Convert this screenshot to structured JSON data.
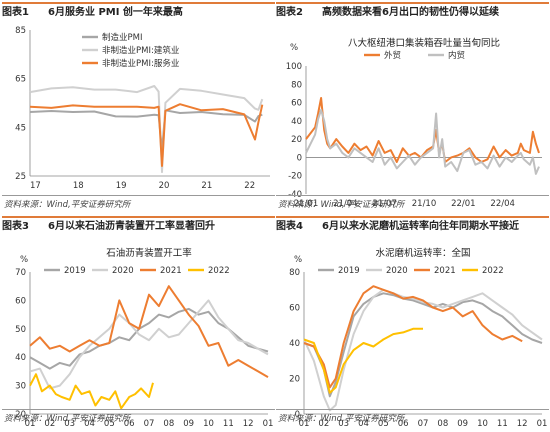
{
  "colors": {
    "orange": "#ed7d31",
    "gray": "#c0c0c0",
    "dark_gray": "#a6a6a6",
    "yellow": "#ffc000",
    "header_line": "#e07b39"
  },
  "source_note": "资料来源：Wind,平安证券研究所",
  "chart_data": [
    {
      "type": "line",
      "panel_label": "图表1",
      "title": "6月服务业 PMI 创一年来最高",
      "xlabel": "",
      "ylabel": "",
      "ylim": [
        25,
        85
      ],
      "yticks": [
        "85",
        "65",
        "45",
        "25"
      ],
      "xticks": [
        "17",
        "18",
        "19",
        "20",
        "21",
        "22"
      ],
      "legend": "top-left",
      "series": [
        {
          "name": "制造业PMI",
          "color": "#a6a6a6",
          "x": [
            2017.0,
            2017.5,
            2018.0,
            2018.5,
            2019.0,
            2019.5,
            2019.9,
            2020.0,
            2020.08,
            2020.16,
            2020.5,
            2021.0,
            2021.5,
            2022.0,
            2022.25,
            2022.33,
            2022.42
          ],
          "values": [
            51.3,
            51.7,
            51.3,
            51.5,
            49.5,
            49.4,
            50.2,
            50.0,
            35.7,
            52.0,
            50.9,
            51.3,
            50.4,
            50.1,
            47.4,
            49.6,
            50.2
          ]
        },
        {
          "name": "非制造业PMI:建筑业",
          "color": "#d0d0d0",
          "x": [
            2017.0,
            2017.5,
            2018.0,
            2018.5,
            2019.0,
            2019.5,
            2019.9,
            2020.0,
            2020.08,
            2020.16,
            2020.5,
            2021.0,
            2021.5,
            2022.0,
            2022.25,
            2022.33,
            2022.42
          ],
          "values": [
            59.5,
            61.0,
            61.5,
            60.5,
            60.5,
            59.5,
            62.0,
            59.7,
            26.6,
            55.1,
            60.8,
            60.0,
            58.5,
            57.0,
            52.7,
            52.2,
            56.6
          ]
        },
        {
          "name": "非制造业PMI:服务业",
          "color": "#ed7d31",
          "x": [
            2017.0,
            2017.5,
            2018.0,
            2018.5,
            2019.0,
            2019.5,
            2019.9,
            2020.0,
            2020.08,
            2020.16,
            2020.5,
            2021.0,
            2021.5,
            2022.0,
            2022.25,
            2022.33,
            2022.42
          ],
          "values": [
            53.5,
            53.0,
            54.0,
            53.5,
            53.5,
            53.5,
            53.0,
            53.5,
            29.1,
            51.8,
            54.5,
            52.0,
            52.5,
            50.3,
            40.0,
            47.1,
            54.3
          ]
        }
      ]
    },
    {
      "type": "line",
      "panel_label": "图表2",
      "title": "高频数据来看6月出口的韧性仍得以延续",
      "subtitle": "八大枢纽港口集装箱吞吐量当旬同比",
      "xlabel": "",
      "ylabel": "%",
      "ylim": [
        -40,
        100
      ],
      "yticks": [
        "100",
        "80",
        "60",
        "40",
        "20",
        "0",
        "-20",
        "-40"
      ],
      "xticks": [
        "21/01",
        "21/04",
        "21/07",
        "21/10",
        "22/01",
        "22/04"
      ],
      "legend": "top-center",
      "series": [
        {
          "name": "外贸",
          "color": "#ed7d31",
          "x": [
            0,
            3,
            4,
            5,
            6,
            7,
            8,
            10,
            12,
            14,
            16,
            18,
            20,
            22,
            24,
            26,
            28,
            30,
            32,
            34,
            36,
            38,
            40,
            42,
            43,
            44,
            45,
            46,
            48,
            50,
            52,
            54,
            56,
            58,
            60,
            62,
            64,
            66,
            68,
            70,
            71,
            72,
            74,
            75,
            76,
            77
          ],
          "values": [
            20,
            33,
            48,
            65,
            30,
            15,
            10,
            20,
            12,
            5,
            15,
            8,
            12,
            2,
            18,
            5,
            8,
            -5,
            10,
            2,
            5,
            0,
            8,
            12,
            30,
            5,
            15,
            -5,
            0,
            2,
            5,
            10,
            0,
            -5,
            -2,
            12,
            0,
            8,
            2,
            5,
            15,
            8,
            5,
            28,
            15,
            5
          ]
        },
        {
          "name": "内贸",
          "color": "#c0c0c0",
          "x": [
            0,
            3,
            4,
            5,
            6,
            7,
            8,
            10,
            12,
            14,
            16,
            18,
            20,
            22,
            24,
            26,
            28,
            30,
            32,
            34,
            36,
            38,
            40,
            42,
            43,
            44,
            45,
            46,
            48,
            50,
            52,
            54,
            56,
            58,
            60,
            62,
            64,
            66,
            68,
            70,
            71,
            72,
            74,
            75,
            76,
            77
          ],
          "values": [
            5,
            25,
            42,
            52,
            40,
            20,
            10,
            15,
            5,
            0,
            10,
            5,
            0,
            -5,
            10,
            -8,
            0,
            -12,
            -5,
            2,
            -8,
            0,
            5,
            10,
            48,
            0,
            20,
            -10,
            -5,
            -15,
            5,
            8,
            -8,
            -5,
            -12,
            2,
            -10,
            0,
            -5,
            2,
            5,
            -2,
            -8,
            0,
            -18,
            -10
          ]
        }
      ]
    },
    {
      "type": "line",
      "panel_label": "图表3",
      "title": "6月以来石油沥青装置开工率显著回升",
      "subtitle": "石油沥青装置开工率",
      "xlabel": "",
      "ylabel": "%",
      "ylim": [
        20,
        70
      ],
      "yticks": [
        "70",
        "60",
        "50",
        "40",
        "30",
        "20"
      ],
      "xticks": [
        "01",
        "02",
        "03",
        "04",
        "05",
        "06",
        "07",
        "08",
        "09",
        "10",
        "11",
        "12",
        "01"
      ],
      "legend": "top-center",
      "series": [
        {
          "name": "2019",
          "color": "#a6a6a6",
          "x": [
            1,
            1.5,
            2,
            2.5,
            3,
            3.5,
            4,
            4.5,
            5,
            5.5,
            6,
            6.5,
            7,
            7.5,
            8,
            8.5,
            9,
            9.5,
            10,
            10.5,
            11,
            11.5,
            12,
            12.5,
            13
          ],
          "values": [
            40,
            38,
            36,
            38,
            37,
            41,
            42,
            44,
            45,
            47,
            46,
            50,
            52,
            55,
            54,
            56,
            57,
            55,
            56,
            52,
            50,
            47,
            44,
            43,
            42
          ]
        },
        {
          "name": "2020",
          "color": "#d0d0d0",
          "x": [
            1,
            1.5,
            2,
            2.5,
            3,
            3.5,
            4,
            4.5,
            5,
            5.5,
            6,
            6.5,
            7,
            7.5,
            8,
            8.5,
            9,
            9.5,
            10,
            10.5,
            11,
            11.5,
            12,
            12.5,
            13
          ],
          "values": [
            35,
            36,
            29,
            30,
            34,
            40,
            44,
            47,
            50,
            55,
            52,
            48,
            46,
            50,
            47,
            48,
            52,
            56,
            60,
            54,
            50,
            46,
            45,
            43,
            41
          ]
        },
        {
          "name": "2021",
          "color": "#ed7d31",
          "x": [
            1,
            1.5,
            2,
            2.5,
            3,
            3.5,
            4,
            4.5,
            5,
            5.5,
            6,
            6.5,
            7,
            7.5,
            8,
            8.5,
            9,
            9.5,
            10,
            10.5,
            11,
            11.5,
            12,
            12.5,
            13
          ],
          "values": [
            44,
            47,
            43,
            44,
            42,
            44,
            46,
            44,
            45,
            60,
            52,
            50,
            62,
            58,
            65,
            60,
            55,
            51,
            44,
            45,
            37,
            39,
            37,
            35,
            33
          ]
        },
        {
          "name": "2022",
          "color": "#ffc000",
          "x": [
            1,
            1.3,
            1.6,
            2,
            2.3,
            2.6,
            3,
            3.3,
            3.6,
            4,
            4.3,
            4.6,
            5,
            5.3,
            5.6,
            6,
            6.3,
            6.6,
            7,
            7.2
          ],
          "values": [
            30,
            34,
            28,
            30,
            27,
            26,
            25,
            30,
            27,
            28,
            23,
            26,
            25,
            28,
            22,
            26,
            27,
            29,
            26,
            31
          ]
        }
      ]
    },
    {
      "type": "line",
      "panel_label": "图表4",
      "title": "6月以来水泥磨机运转率向往年同期水平接近",
      "subtitle": "水泥磨机运转率：全国",
      "xlabel": "",
      "ylabel": "%",
      "ylim": [
        0,
        80
      ],
      "yticks": [
        "80",
        "60",
        "40",
        "20",
        "0"
      ],
      "xticks": [
        "01",
        "02",
        "03",
        "04",
        "05",
        "06",
        "07",
        "08",
        "09",
        "10",
        "11",
        "12",
        "01"
      ],
      "legend": "top-center",
      "series": [
        {
          "name": "2019",
          "color": "#a6a6a6",
          "x": [
            1,
            1.5,
            2,
            2.3,
            2.6,
            3,
            3.5,
            4,
            4.5,
            5,
            5.5,
            6,
            6.5,
            7,
            7.5,
            8,
            8.5,
            9,
            9.5,
            10,
            10.5,
            11,
            11.5,
            12,
            12.5,
            13
          ],
          "values": [
            40,
            38,
            25,
            10,
            18,
            35,
            55,
            62,
            66,
            68,
            67,
            65,
            64,
            62,
            60,
            62,
            60,
            63,
            64,
            62,
            58,
            55,
            50,
            45,
            42,
            40
          ]
        },
        {
          "name": "2020",
          "color": "#d0d0d0",
          "x": [
            1,
            1.5,
            2,
            2.3,
            2.6,
            3,
            3.5,
            4,
            4.5,
            5,
            5.5,
            6,
            6.5,
            7,
            7.5,
            8,
            8.5,
            9,
            9.5,
            10,
            10.5,
            11,
            11.5,
            12,
            12.5,
            13
          ],
          "values": [
            42,
            30,
            10,
            2,
            5,
            25,
            45,
            58,
            66,
            70,
            68,
            66,
            65,
            63,
            62,
            60,
            62,
            64,
            66,
            68,
            64,
            60,
            56,
            50,
            46,
            42
          ]
        },
        {
          "name": "2021",
          "color": "#ed7d31",
          "x": [
            1,
            1.5,
            2,
            2.3,
            2.6,
            3,
            3.5,
            4,
            4.5,
            5,
            5.5,
            6,
            6.5,
            7,
            7.5,
            8,
            8.5,
            9,
            9.5,
            10,
            10.5,
            11,
            11.5,
            12
          ],
          "values": [
            40,
            38,
            28,
            15,
            20,
            40,
            58,
            68,
            72,
            70,
            68,
            65,
            66,
            64,
            60,
            58,
            60,
            55,
            58,
            50,
            45,
            42,
            44,
            41
          ]
        },
        {
          "name": "2022",
          "color": "#ffc000",
          "x": [
            1,
            1.5,
            2,
            2.3,
            2.6,
            3,
            3.5,
            4,
            4.5,
            5,
            5.5,
            6,
            6.5,
            7
          ],
          "values": [
            42,
            40,
            25,
            12,
            15,
            28,
            36,
            40,
            38,
            42,
            45,
            46,
            48,
            48
          ]
        }
      ]
    }
  ]
}
